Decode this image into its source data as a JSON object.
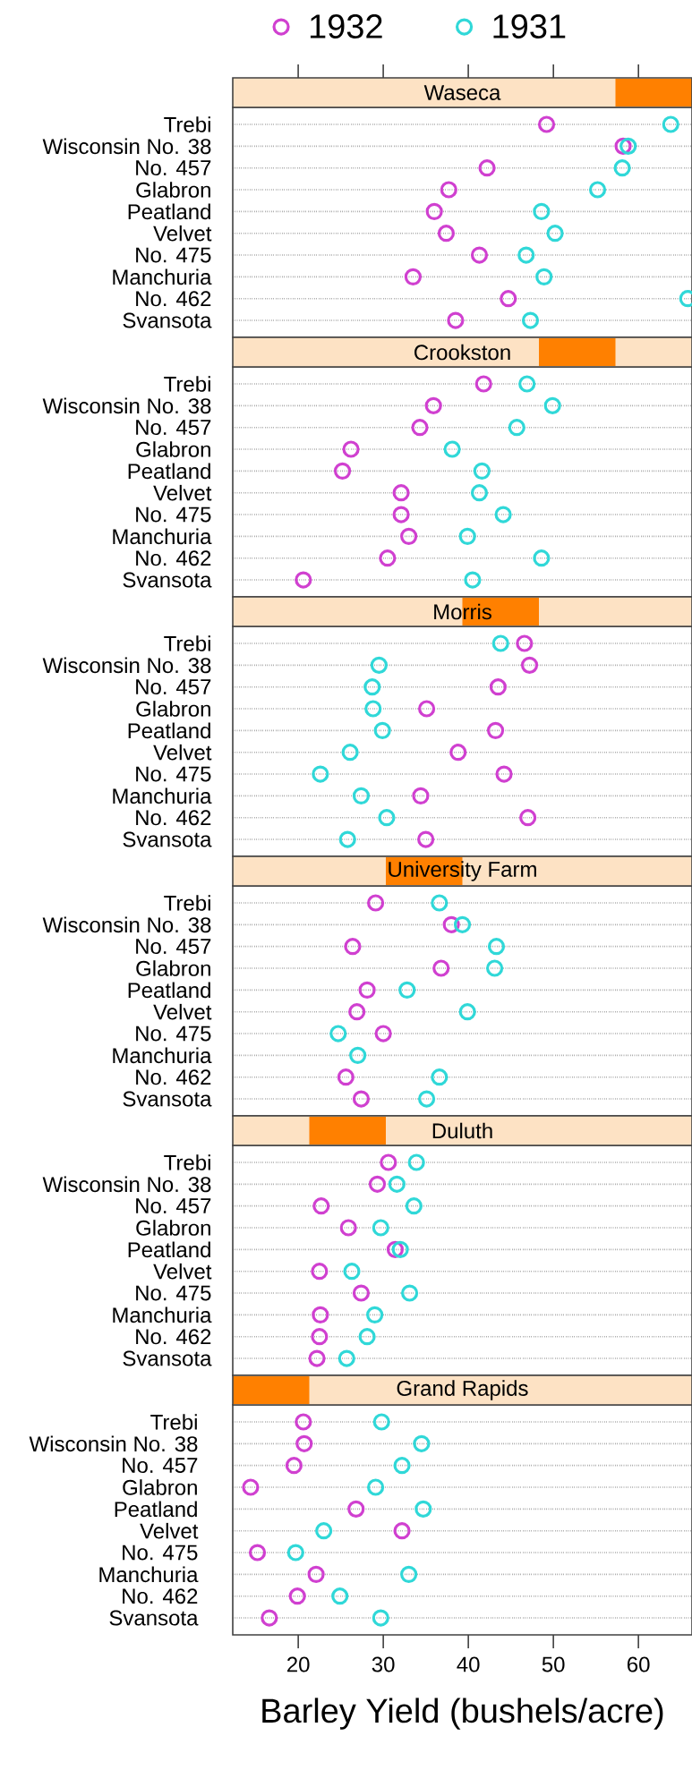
{
  "chart_data": [
    {
      "type": "scatter",
      "orientation": "horizontal",
      "title": "Waseca",
      "categories": [
        "Trebi",
        "Wisconsin No. 38",
        "No. 457",
        "Glabron",
        "Peatland",
        "Velvet",
        "No. 475",
        "Manchuria",
        "No. 462",
        "Svansota"
      ],
      "xlim": [
        12.3,
        66.3
      ],
      "xticks": [
        20,
        30,
        40,
        50,
        60
      ],
      "tick_labels": "y",
      "grid": "y",
      "marker": "circle",
      "legend": "top",
      "series": [
        {
          "name": "1932",
          "color": "#d040d0",
          "values": [
            49.2,
            58.2,
            42.2,
            37.7,
            36.0,
            37.4,
            41.3,
            33.5,
            44.7,
            38.5
          ]
        },
        {
          "name": "1931",
          "color": "#30d8d8",
          "values": [
            63.8,
            58.8,
            58.1,
            55.2,
            48.6,
            50.2,
            46.8,
            48.9,
            65.8,
            47.3
          ]
        }
      ]
    },
    {
      "type": "scatter",
      "orientation": "horizontal",
      "title": "Crookston",
      "categories": [
        "Trebi",
        "Wisconsin No. 38",
        "No. 457",
        "Glabron",
        "Peatland",
        "Velvet",
        "No. 475",
        "Manchuria",
        "No. 462",
        "Svansota"
      ],
      "xlim": [
        12.3,
        66.3
      ],
      "tick_labels": "y",
      "grid": "y",
      "marker": "circle",
      "series": [
        {
          "color": "#d040d0",
          "values": [
            41.8,
            35.9,
            34.3,
            26.2,
            25.2,
            32.1,
            32.1,
            33.0,
            30.5,
            20.6
          ]
        },
        {
          "color": "#30d8d8",
          "values": [
            46.9,
            49.9,
            45.7,
            38.1,
            41.6,
            41.3,
            44.1,
            39.9,
            48.6,
            40.5
          ]
        }
      ]
    },
    {
      "type": "scatter",
      "orientation": "horizontal",
      "title": "Morris",
      "categories": [
        "Trebi",
        "Wisconsin No. 38",
        "No. 457",
        "Glabron",
        "Peatland",
        "Velvet",
        "No. 475",
        "Manchuria",
        "No. 462",
        "Svansota"
      ],
      "xlim": [
        12.3,
        66.3
      ],
      "tick_labels": "y",
      "grid": "y",
      "marker": "circle",
      "series": [
        {
          "color": "#d040d0",
          "values": [
            46.6,
            47.2,
            43.5,
            35.1,
            43.2,
            38.8,
            44.2,
            34.4,
            47.0,
            35.0
          ]
        },
        {
          "color": "#30d8d8",
          "values": [
            43.8,
            29.5,
            28.7,
            28.8,
            29.9,
            26.1,
            22.6,
            27.4,
            30.4,
            25.8
          ]
        }
      ]
    },
    {
      "type": "scatter",
      "orientation": "horizontal",
      "title": "University Farm",
      "categories": [
        "Trebi",
        "Wisconsin No. 38",
        "No. 457",
        "Glabron",
        "Peatland",
        "Velvet",
        "No. 475",
        "Manchuria",
        "No. 462",
        "Svansota"
      ],
      "xlim": [
        12.3,
        66.3
      ],
      "tick_labels": "y",
      "grid": "y",
      "marker": "circle",
      "series": [
        {
          "color": "#d040d0",
          "values": [
            29.1,
            38.0,
            26.4,
            36.8,
            28.1,
            26.9,
            30.0,
            null,
            25.6,
            27.4
          ]
        },
        {
          "color": "#30d8d8",
          "values": [
            36.6,
            39.3,
            43.3,
            43.1,
            32.8,
            39.9,
            24.7,
            27.0,
            36.6,
            35.1
          ]
        }
      ]
    },
    {
      "type": "scatter",
      "orientation": "horizontal",
      "title": "Duluth",
      "categories": [
        "Trebi",
        "Wisconsin No. 38",
        "No. 457",
        "Glabron",
        "Peatland",
        "Velvet",
        "No. 475",
        "Manchuria",
        "No. 462",
        "Svansota"
      ],
      "xlim": [
        12.3,
        66.3
      ],
      "tick_labels": "y",
      "grid": "y",
      "marker": "circle",
      "series": [
        {
          "color": "#d040d0",
          "values": [
            30.6,
            29.3,
            22.7,
            25.9,
            31.4,
            22.5,
            27.4,
            22.6,
            22.5,
            22.2
          ]
        },
        {
          "color": "#30d8d8",
          "values": [
            33.9,
            31.6,
            33.6,
            29.7,
            32.0,
            26.3,
            33.1,
            29.0,
            28.1,
            25.7
          ]
        }
      ]
    },
    {
      "type": "scatter",
      "orientation": "horizontal",
      "title": "Grand Rapids",
      "categories": [
        "Trebi",
        "Wisconsin No. 38",
        "No. 457",
        "Glabron",
        "Peatland",
        "Velvet",
        "No. 475",
        "Manchuria",
        "No. 462",
        "Svansota"
      ],
      "xlim": [
        12.3,
        66.3
      ],
      "xticks": [
        20,
        30,
        40,
        50,
        60
      ],
      "xlabel": "Barley Yield (bushels/acre)",
      "grid": "y",
      "marker": "circle",
      "series": [
        {
          "color": "#d040d0",
          "values": [
            20.6,
            20.7,
            19.5,
            14.4,
            26.8,
            32.2,
            15.2,
            22.1,
            19.9,
            16.6
          ]
        },
        {
          "color": "#30d8d8",
          "values": [
            29.8,
            34.5,
            32.2,
            29.1,
            34.7,
            23.0,
            19.7,
            33.0,
            24.9,
            29.7
          ]
        }
      ]
    }
  ]
}
